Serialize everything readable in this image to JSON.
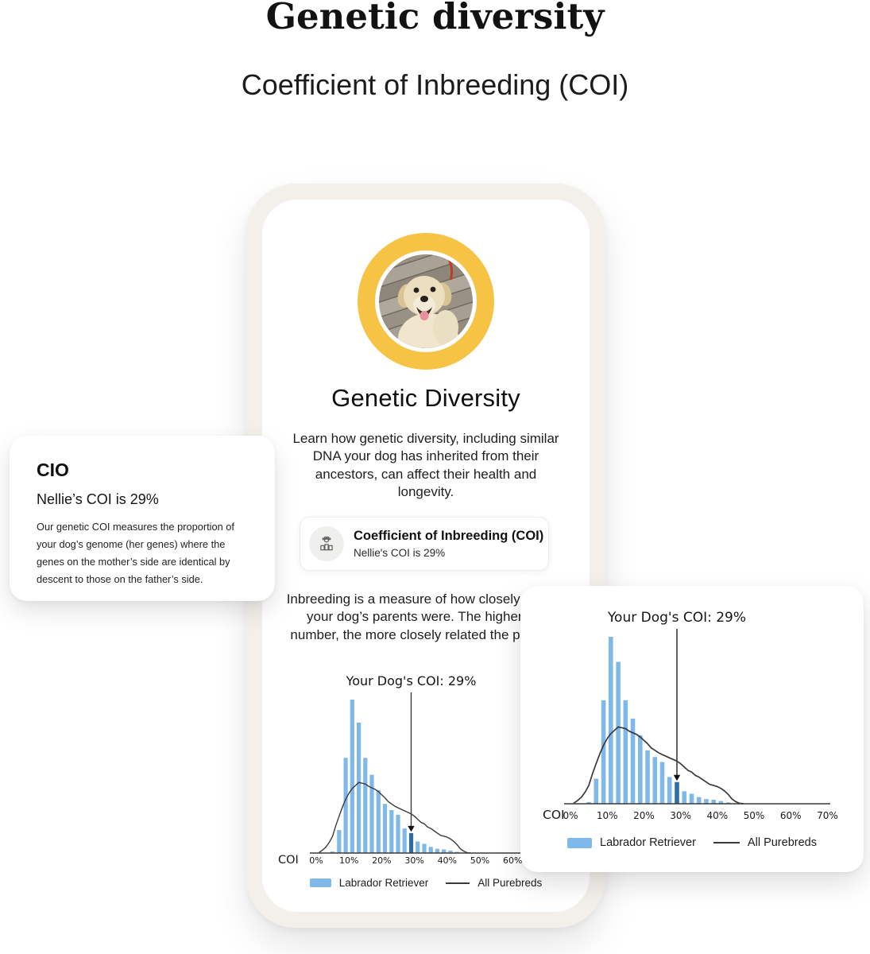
{
  "page": {
    "title": "Genetic diversity",
    "subtitle": "Coefficient of Inbreeding (COI)"
  },
  "info_card": {
    "title": "CIO",
    "subtitle": "Nellie’s COI is 29%",
    "body": "Our genetic COI measures the proportion of your dog’s genome (her genes) where the genes on the mother’s side are identical by descent to those on the father’s side."
  },
  "phone": {
    "avatar": {
      "icon": "dog-photo",
      "ring_color": "#F6C344"
    },
    "heading": "Genetic Diversity",
    "intro": "Learn how genetic diversity, including similar DNA your dog has inherited from their ancestors, can affect their health and longevity.",
    "coi_card": {
      "icon": "paw-family-icon",
      "title": "Coefficient of Inbreeding (COI)",
      "subtitle": "Nellie's COI is 29%"
    },
    "body": "Inbreeding is a measure of how closely related your dog’s parents were. The higher the number, the more closely related the parents."
  },
  "chart_data": {
    "type": "bar",
    "title": "Your Dog's COI: 29%",
    "xlabel": "COI",
    "ylabel": "relative frequency (unlabeled axis, max bar = 100)",
    "xlim": [
      0,
      70
    ],
    "grid": false,
    "legend_position": "bottom",
    "marker_percent": 29,
    "marker_label": "Your Dog's COI: 29%",
    "bin_width_percent": 2,
    "x_tick_values": [
      0,
      10,
      20,
      30,
      40,
      50,
      60,
      70
    ],
    "x_ticks": [
      "0%",
      "10%",
      "20%",
      "30%",
      "40%",
      "50%",
      "60%",
      "70%"
    ],
    "series": [
      {
        "name": "Labrador Retriever",
        "type": "bar",
        "color": "#7FB9E9",
        "highlight_color": "#2E6DA8",
        "x": [
          5,
          7,
          9,
          11,
          13,
          15,
          17,
          19,
          21,
          23,
          25,
          27,
          29,
          31,
          33,
          35,
          37,
          39,
          41,
          43
        ],
        "values": [
          1,
          15,
          62,
          100,
          85,
          62,
          51,
          41,
          32,
          28,
          25,
          16,
          13,
          7.5,
          6,
          4,
          2.8,
          2.4,
          1.6,
          0.8
        ]
      },
      {
        "name": "All Purebreds",
        "type": "line",
        "color": "#3A3A3A",
        "x": [
          1,
          2,
          3,
          4,
          5,
          6,
          7,
          8,
          9,
          10,
          11,
          12,
          13,
          14,
          15,
          16,
          17,
          18,
          19,
          20,
          21,
          22,
          23,
          24,
          25,
          26,
          27,
          28,
          29,
          30,
          31,
          32,
          33,
          34,
          35,
          36,
          37,
          38,
          39,
          40,
          41,
          42,
          43,
          44,
          45,
          46,
          47
        ],
        "values": [
          0.5,
          2,
          4,
          7,
          11,
          18,
          24,
          30,
          35,
          39,
          42,
          44,
          46,
          45.5,
          45,
          43.5,
          42.5,
          41.5,
          40,
          38,
          36,
          33.5,
          32,
          30.5,
          29.5,
          28.5,
          27.5,
          26.5,
          25.5,
          24,
          22,
          20,
          19,
          17,
          16,
          14.5,
          13,
          11.5,
          11,
          10.3,
          9.2,
          7.6,
          5.5,
          2.8,
          1.3,
          0.3,
          0
        ]
      }
    ]
  }
}
